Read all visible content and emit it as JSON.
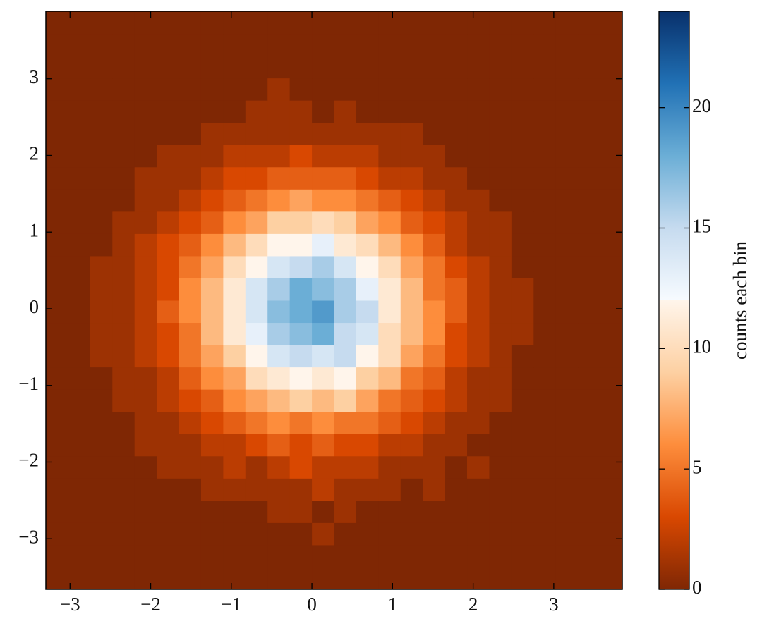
{
  "chart_data": {
    "type": "hist2d",
    "xlim": [
      -3.3,
      3.85
    ],
    "ylim": [
      -3.66,
      3.88
    ],
    "xticks": [
      {
        "value": -3,
        "label": "−3"
      },
      {
        "value": -2,
        "label": "−2"
      },
      {
        "value": -1,
        "label": "−1"
      },
      0,
      1,
      2,
      3
    ],
    "yticks": [
      {
        "value": -3,
        "label": "−3"
      },
      {
        "value": -2,
        "label": "−2"
      },
      {
        "value": -1,
        "label": "−1"
      },
      0,
      1,
      2,
      3
    ],
    "xbins": [
      -3.3,
      -3.025,
      -2.75,
      -2.475,
      -2.2,
      -1.925,
      -1.65,
      -1.375,
      -1.1,
      -0.825,
      -0.55,
      -0.275,
      0,
      0.275,
      0.55,
      0.825,
      1.1,
      1.375,
      1.65,
      1.925,
      2.2,
      2.475,
      2.75,
      3.025,
      3.3,
      3.575,
      3.85
    ],
    "ybins": [
      -3.66,
      -3.37,
      -3.08,
      -2.79,
      -2.5,
      -2.21,
      -1.92,
      -1.63,
      -1.34,
      -1.05,
      -0.76,
      -0.47,
      -0.18,
      0.11,
      0.4,
      0.69,
      0.98,
      1.27,
      1.56,
      1.85,
      2.14,
      2.43,
      2.72,
      3.01,
      3.3,
      3.59,
      3.88
    ],
    "counts": [
      [
        0,
        0,
        0,
        0,
        0,
        0,
        0,
        0,
        0,
        0,
        0,
        0,
        0,
        0,
        0,
        0,
        0,
        0,
        0,
        0,
        0,
        0,
        0,
        0,
        0,
        0
      ],
      [
        0,
        0,
        0,
        0,
        0,
        0,
        0,
        0,
        0,
        0,
        0,
        0,
        0,
        0,
        0,
        0,
        0,
        0,
        0,
        0,
        0,
        0,
        0,
        0,
        0,
        0
      ],
      [
        0,
        0,
        0,
        0,
        0,
        0,
        0,
        0,
        0,
        0,
        0,
        0,
        1,
        0,
        0,
        0,
        0,
        0,
        0,
        0,
        0,
        0,
        0,
        0,
        0,
        0
      ],
      [
        0,
        0,
        0,
        0,
        0,
        0,
        0,
        0,
        0,
        0,
        1,
        1,
        0,
        1,
        0,
        0,
        0,
        0,
        0,
        0,
        0,
        0,
        0,
        0,
        0,
        0
      ],
      [
        0,
        0,
        0,
        0,
        0,
        0,
        0,
        1,
        1,
        1,
        1,
        1,
        2,
        1,
        1,
        1,
        0,
        1,
        0,
        0,
        0,
        0,
        0,
        0,
        0,
        0
      ],
      [
        0,
        0,
        0,
        0,
        0,
        1,
        1,
        1,
        2,
        1,
        2,
        3,
        2,
        2,
        2,
        1,
        1,
        1,
        0,
        1,
        0,
        0,
        0,
        0,
        0,
        0
      ],
      [
        0,
        0,
        0,
        0,
        1,
        1,
        1,
        2,
        2,
        3,
        4,
        3,
        4,
        3,
        3,
        2,
        2,
        1,
        1,
        0,
        0,
        0,
        0,
        0,
        0,
        0
      ],
      [
        0,
        0,
        0,
        0,
        1,
        1,
        2,
        3,
        4,
        5,
        6,
        5,
        6,
        5,
        5,
        4,
        3,
        2,
        1,
        1,
        0,
        0,
        0,
        0,
        0,
        0
      ],
      [
        0,
        0,
        0,
        1,
        1,
        2,
        3,
        4,
        6,
        7,
        8,
        9,
        8,
        9,
        7,
        5,
        4,
        3,
        2,
        1,
        1,
        0,
        0,
        0,
        0,
        0
      ],
      [
        0,
        0,
        0,
        1,
        1,
        2,
        4,
        6,
        7,
        10,
        11,
        12,
        11,
        12,
        9,
        8,
        5,
        4,
        2,
        1,
        1,
        0,
        0,
        0,
        0,
        0
      ],
      [
        0,
        0,
        1,
        1,
        2,
        3,
        5,
        7,
        9,
        12,
        14,
        15,
        14,
        15,
        12,
        10,
        7,
        5,
        3,
        2,
        1,
        0,
        0,
        0,
        0,
        0
      ],
      [
        0,
        0,
        1,
        1,
        2,
        3,
        5,
        8,
        11,
        13,
        16,
        17,
        18,
        15,
        14,
        10,
        8,
        6,
        3,
        2,
        1,
        1,
        0,
        0,
        0,
        0
      ],
      [
        0,
        0,
        1,
        1,
        2,
        4,
        6,
        8,
        11,
        14,
        17,
        18,
        19,
        16,
        15,
        11,
        8,
        6,
        4,
        2,
        1,
        1,
        0,
        0,
        0,
        0
      ],
      [
        0,
        0,
        1,
        1,
        2,
        3,
        6,
        8,
        11,
        14,
        16,
        18,
        17,
        16,
        13,
        11,
        8,
        5,
        4,
        2,
        1,
        1,
        0,
        0,
        0,
        0
      ],
      [
        0,
        0,
        1,
        1,
        2,
        3,
        5,
        7,
        10,
        12,
        14,
        15,
        16,
        14,
        12,
        10,
        7,
        5,
        3,
        2,
        1,
        0,
        0,
        0,
        0,
        0
      ],
      [
        0,
        0,
        0,
        1,
        2,
        3,
        4,
        6,
        8,
        10,
        12,
        12,
        13,
        11,
        10,
        8,
        6,
        4,
        2,
        1,
        1,
        0,
        0,
        0,
        0,
        0
      ],
      [
        0,
        0,
        0,
        1,
        1,
        2,
        3,
        4,
        6,
        7,
        9,
        9,
        10,
        9,
        7,
        6,
        4,
        3,
        2,
        1,
        1,
        0,
        0,
        0,
        0,
        0
      ],
      [
        0,
        0,
        0,
        0,
        1,
        1,
        2,
        3,
        4,
        5,
        6,
        7,
        6,
        6,
        5,
        4,
        3,
        2,
        1,
        1,
        0,
        0,
        0,
        0,
        0,
        0
      ],
      [
        0,
        0,
        0,
        0,
        1,
        1,
        1,
        2,
        3,
        3,
        4,
        4,
        4,
        4,
        3,
        2,
        2,
        1,
        1,
        0,
        0,
        0,
        0,
        0,
        0,
        0
      ],
      [
        0,
        0,
        0,
        0,
        0,
        1,
        1,
        1,
        2,
        2,
        2,
        3,
        2,
        2,
        2,
        1,
        1,
        1,
        0,
        0,
        0,
        0,
        0,
        0,
        0,
        0
      ],
      [
        0,
        0,
        0,
        0,
        0,
        0,
        0,
        1,
        1,
        1,
        1,
        1,
        1,
        1,
        1,
        1,
        1,
        0,
        0,
        0,
        0,
        0,
        0,
        0,
        0,
        0
      ],
      [
        0,
        0,
        0,
        0,
        0,
        0,
        0,
        0,
        0,
        1,
        1,
        1,
        0,
        1,
        0,
        0,
        0,
        0,
        0,
        0,
        0,
        0,
        0,
        0,
        0,
        0
      ],
      [
        0,
        0,
        0,
        0,
        0,
        0,
        0,
        0,
        0,
        0,
        1,
        0,
        0,
        0,
        0,
        0,
        0,
        0,
        0,
        0,
        0,
        0,
        0,
        0,
        0,
        0
      ],
      [
        0,
        0,
        0,
        0,
        0,
        0,
        0,
        0,
        0,
        0,
        0,
        0,
        0,
        0,
        0,
        0,
        0,
        0,
        0,
        0,
        0,
        0,
        0,
        0,
        0,
        0
      ],
      [
        0,
        0,
        0,
        0,
        0,
        0,
        0,
        0,
        0,
        0,
        0,
        0,
        0,
        0,
        0,
        0,
        0,
        0,
        0,
        0,
        0,
        0,
        0,
        0,
        0,
        0
      ],
      [
        0,
        0,
        0,
        0,
        0,
        0,
        0,
        0,
        0,
        0,
        0,
        0,
        0,
        0,
        0,
        0,
        0,
        0,
        0,
        0,
        0,
        0,
        0,
        0,
        0,
        0
      ]
    ],
    "clim": [
      0,
      24
    ],
    "colormap": [
      {
        "value": 0,
        "color": "#7f2704"
      },
      {
        "value": 3,
        "color": "#d94801"
      },
      {
        "value": 6,
        "color": "#fd8d3c"
      },
      {
        "value": 9,
        "color": "#fdd0a2"
      },
      {
        "value": 12,
        "color": "#fff5eb"
      },
      {
        "value": 12,
        "color": "#f7fbff"
      },
      {
        "value": 15,
        "color": "#c6dbef"
      },
      {
        "value": 18,
        "color": "#6baed6"
      },
      {
        "value": 21,
        "color": "#2171b5"
      },
      {
        "value": 24,
        "color": "#08306b"
      }
    ],
    "colorbar_ticks": [
      0,
      5,
      10,
      15,
      20
    ],
    "colorbar_label": "counts each bin"
  }
}
